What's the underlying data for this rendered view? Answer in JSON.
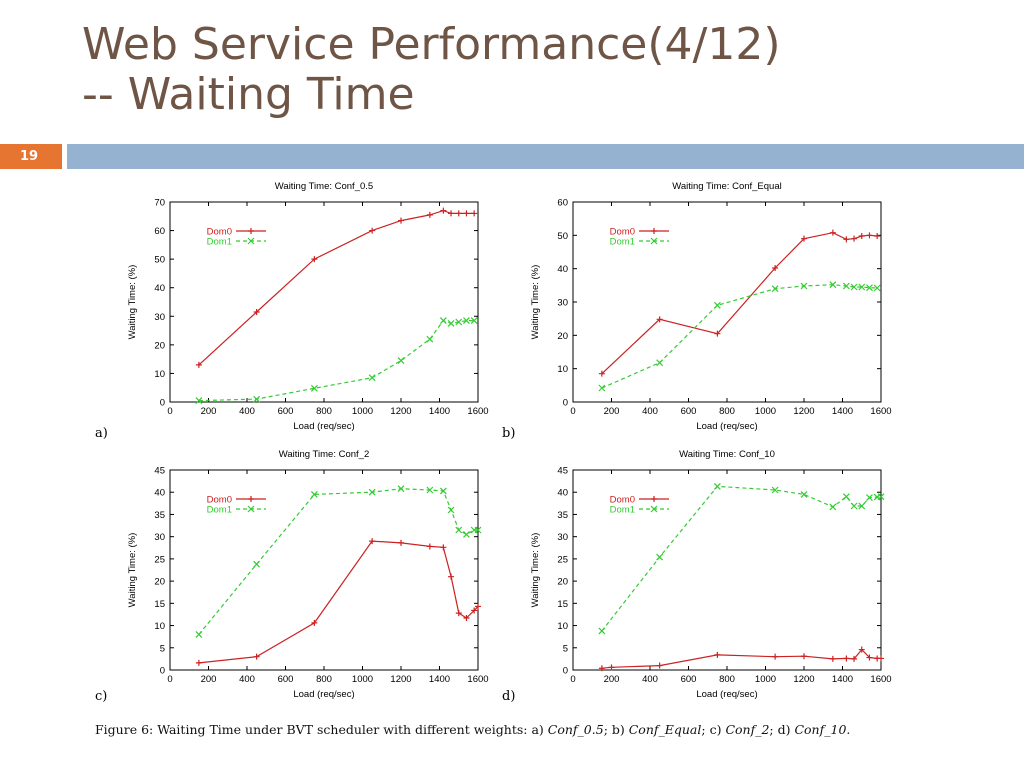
{
  "slide": {
    "title_line1": "Web Service Performance(4/12)",
    "title_line2": "-- Waiting Time",
    "number": "19"
  },
  "caption": {
    "prefix": "Figure 6: Waiting Time under BVT scheduler with different weights: a) ",
    "a": "Conf_0.5",
    "sep_b": "; b) ",
    "b": "Conf_Equal",
    "sep_c": "; c) ",
    "c": "Conf_2",
    "sep_d": "; d) ",
    "d": "Conf_10",
    "end": "."
  },
  "colors": {
    "dom0": "#cc2222",
    "dom1": "#33cc33"
  },
  "chart_data": [
    {
      "type": "line",
      "panel_label": "a)",
      "title": "Waiting Time: Conf_0.5",
      "xlabel": "Load (req/sec)",
      "ylabel": "Waiting Time: (%)",
      "xlim": [
        0,
        1600
      ],
      "ylim": [
        0,
        70
      ],
      "xticks": [
        0,
        200,
        400,
        600,
        800,
        1000,
        1200,
        1400,
        1600
      ],
      "yticks": [
        0,
        10,
        20,
        30,
        40,
        50,
        60,
        70
      ],
      "legend": "top-left",
      "series": [
        {
          "name": "Dom0",
          "x": [
            150,
            450,
            750,
            1050,
            1200,
            1350,
            1420,
            1460,
            1500,
            1540,
            1580
          ],
          "y": [
            13,
            31.5,
            50,
            60,
            63.5,
            65.5,
            67,
            66,
            66,
            66,
            66
          ]
        },
        {
          "name": "Dom1",
          "x": [
            150,
            450,
            750,
            1050,
            1200,
            1350,
            1420,
            1460,
            1500,
            1540,
            1580
          ],
          "y": [
            0.5,
            1,
            4.8,
            8.5,
            14.5,
            22,
            28.5,
            27.5,
            28,
            28.5,
            28.5
          ]
        }
      ]
    },
    {
      "type": "line",
      "panel_label": "b)",
      "title": "Waiting Time: Conf_Equal",
      "xlabel": "Load (req/sec)",
      "ylabel": "Waiting Time: (%)",
      "xlim": [
        0,
        1600
      ],
      "ylim": [
        0,
        60
      ],
      "xticks": [
        0,
        200,
        400,
        600,
        800,
        1000,
        1200,
        1400,
        1600
      ],
      "yticks": [
        0,
        10,
        20,
        30,
        40,
        50,
        60
      ],
      "legend": "top-left",
      "series": [
        {
          "name": "Dom0",
          "x": [
            150,
            450,
            750,
            1050,
            1200,
            1350,
            1420,
            1460,
            1500,
            1540,
            1580
          ],
          "y": [
            8.5,
            24.8,
            20.5,
            40.2,
            49,
            50.8,
            48.8,
            49,
            49.8,
            50,
            49.8
          ]
        },
        {
          "name": "Dom1",
          "x": [
            150,
            450,
            750,
            1050,
            1200,
            1350,
            1420,
            1460,
            1500,
            1540,
            1580
          ],
          "y": [
            4.2,
            11.8,
            29,
            34,
            34.8,
            35.2,
            34.8,
            34.5,
            34.5,
            34.3,
            34.2
          ]
        }
      ]
    },
    {
      "type": "line",
      "panel_label": "c)",
      "title": "Waiting Time: Conf_2",
      "xlabel": "Load (req/sec)",
      "ylabel": "Waiting Time: (%)",
      "xlim": [
        0,
        1600
      ],
      "ylim": [
        0,
        45
      ],
      "xticks": [
        0,
        200,
        400,
        600,
        800,
        1000,
        1200,
        1400,
        1600
      ],
      "yticks": [
        0,
        5,
        10,
        15,
        20,
        25,
        30,
        35,
        40,
        45
      ],
      "legend": "top-left",
      "series": [
        {
          "name": "Dom0",
          "x": [
            150,
            450,
            750,
            1050,
            1200,
            1350,
            1420,
            1460,
            1500,
            1540,
            1580,
            1600
          ],
          "y": [
            1.6,
            3,
            10.6,
            29,
            28.6,
            27.8,
            27.6,
            21,
            12.8,
            11.7,
            13.4,
            14.3
          ]
        },
        {
          "name": "Dom1",
          "x": [
            150,
            450,
            750,
            1050,
            1200,
            1350,
            1420,
            1460,
            1500,
            1540,
            1580,
            1600
          ],
          "y": [
            8,
            23.8,
            39.5,
            40,
            40.8,
            40.5,
            40.3,
            36,
            31.5,
            30.5,
            31.5,
            31.5
          ]
        }
      ]
    },
    {
      "type": "line",
      "panel_label": "d)",
      "title": "Waiting Time: Conf_10",
      "xlabel": "Load (req/sec)",
      "ylabel": "Waiting Time: (%)",
      "xlim": [
        0,
        1600
      ],
      "ylim": [
        0,
        45
      ],
      "xticks": [
        0,
        200,
        400,
        600,
        800,
        1000,
        1200,
        1400,
        1600
      ],
      "yticks": [
        0,
        5,
        10,
        15,
        20,
        25,
        30,
        35,
        40,
        45
      ],
      "legend": "top-left",
      "series": [
        {
          "name": "Dom0",
          "x": [
            150,
            200,
            450,
            750,
            1050,
            1200,
            1350,
            1420,
            1460,
            1500,
            1540,
            1580,
            1600
          ],
          "y": [
            0.4,
            0.6,
            1,
            3.4,
            3,
            3.1,
            2.5,
            2.6,
            2.5,
            4.6,
            2.8,
            2.6,
            2.6
          ]
        },
        {
          "name": "Dom1",
          "x": [
            150,
            450,
            750,
            1050,
            1200,
            1350,
            1420,
            1460,
            1500,
            1540,
            1580,
            1600
          ],
          "y": [
            8.8,
            25.4,
            41.3,
            40.5,
            39.5,
            36.7,
            39,
            36.9,
            36.9,
            38.8,
            38.9,
            39
          ]
        }
      ]
    }
  ]
}
